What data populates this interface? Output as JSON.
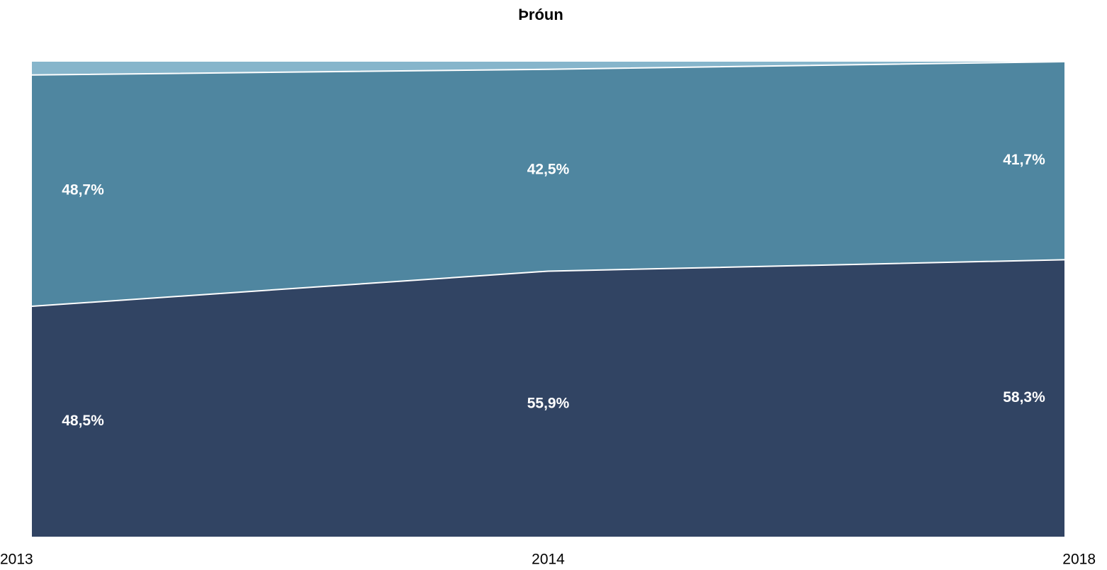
{
  "chart_data": {
    "type": "area",
    "stacked": true,
    "title": "Þróun",
    "categories": [
      "2013",
      "2014",
      "2018"
    ],
    "ylim": [
      0,
      100
    ],
    "series": [
      {
        "color": "#314463",
        "values": [
          48.5,
          55.9,
          58.3
        ],
        "value_labels": [
          "48,5%",
          "55,9%",
          "58,3%"
        ]
      },
      {
        "color": "#4f86a0",
        "values": [
          48.7,
          42.5,
          41.7
        ],
        "value_labels": [
          "48,7%",
          "42,5%",
          "41,7%"
        ]
      },
      {
        "color": "#86b5cb",
        "values": [
          2.8,
          1.6,
          0.0
        ]
      }
    ]
  }
}
